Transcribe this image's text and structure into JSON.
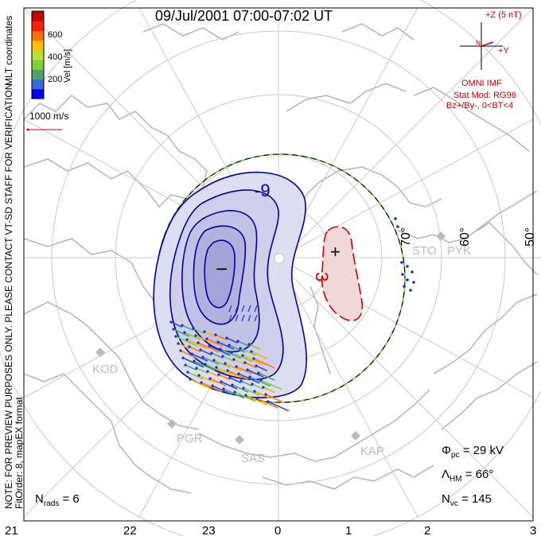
{
  "title": "09/Jul/2001 07:00-07:02 UT",
  "side_note_1": "NOTE: FOR PREVIEW PURPOSES ONLY. PLEASE CONTACT VT-SD STAFF FOR VERIFICATION.",
  "side_note_2": "FitOrder: 8,  mapEX format",
  "coords_label": "MLT coordinates",
  "colorbar": {
    "label": "Vel [m/s]",
    "ticks": [
      "600",
      "400",
      "200"
    ],
    "colors": [
      "#0000ff",
      "#3e6ad8",
      "#4aa56a",
      "#7fcf3a",
      "#b8e030",
      "#ffc000",
      "#ff7000",
      "#ff2000",
      "#cc0000"
    ]
  },
  "scale_vector": "1000 m/s",
  "imf": {
    "bz_label": "+Z (5 nT)",
    "by_label": "+Y",
    "n_label": "N",
    "source": "OMNI IMF",
    "model_line1": "Stat Mod: RG96",
    "model_line2": "Bz+/By-, 0<BT<4"
  },
  "mlt_ticks": [
    "21",
    "22",
    "23",
    "0",
    "1",
    "2",
    "3"
  ],
  "lat_labels": [
    "70°",
    "60°",
    "50°"
  ],
  "stations": [
    "KOD",
    "PGR",
    "SAS",
    "KAP",
    "STO",
    "PYK"
  ],
  "contour_labels": {
    "neg_value": "-9",
    "neg_sign": "−",
    "pos_value": "3",
    "pos_sign": "+"
  },
  "stats": {
    "phi_symbol": "Φ",
    "phi_sub": "pc",
    "phi_value": " = 29 kV",
    "lambda_symbol": "Λ",
    "lambda_sub": "HM",
    "lambda_value": " = 66°",
    "nvc_symbol": "N",
    "nvc_sub": "vc",
    "nvc_value": " = 145",
    "nrads_symbol": "N",
    "nrads_sub": "rads",
    "nrads_value": " = 6"
  },
  "colors": {
    "neg_contour": "#0000aa",
    "pos_contour": "#cc0000",
    "neg_fill": "#c8c8ea",
    "pos_fill": "#f0c8c8",
    "grid": "#c8c8c8",
    "coast": "#b4b4b4",
    "hmb_green": "#66dd33"
  }
}
